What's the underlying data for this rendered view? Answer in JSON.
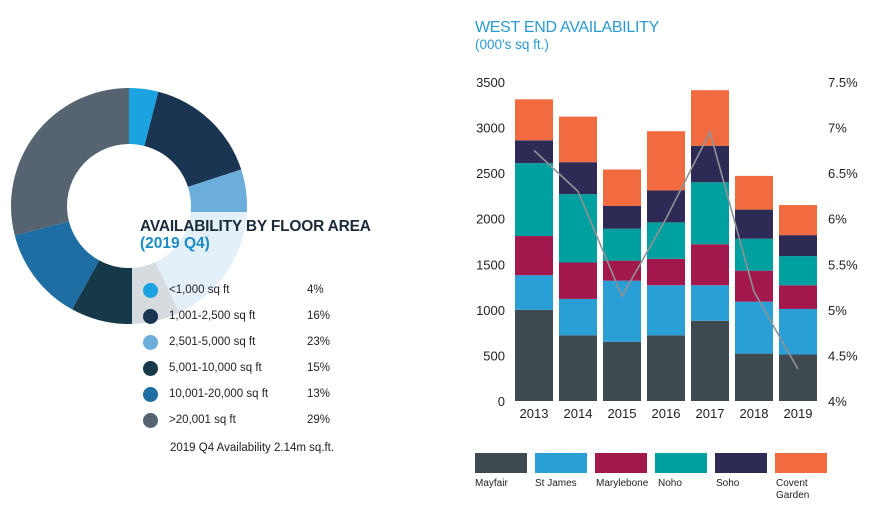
{
  "chart_data": [
    {
      "type": "pie",
      "title": "AVAILABILITY BY FLOOR AREA",
      "subtitle": "(2019 Q4)",
      "slices": [
        {
          "label": "<1,000 sq ft",
          "value": 4,
          "pct_label": "4%",
          "color": "#1aa3e0"
        },
        {
          "label": "1,001-2,500 sq ft",
          "value": 16,
          "pct_label": "16%",
          "color": "#1a3552"
        },
        {
          "label": "2,501-5,000 sq ft",
          "value": 23,
          "pct_label": "23%",
          "color": "#6baedc"
        },
        {
          "label": "5,001-10,000 sq ft",
          "value": 15,
          "pct_label": "15%",
          "color": "#16394a"
        },
        {
          "label": "10,001-20,000 sq ft",
          "value": 13,
          "pct_label": "13%",
          "color": "#1f6ea3"
        },
        {
          "label": ">20,001 sq ft",
          "value": 29,
          "pct_label": "29%",
          "color": "#556470"
        }
      ],
      "footnote": "2019 Q4 Availability 2.14m sq.ft."
    },
    {
      "type": "bar",
      "stacked": true,
      "title": "WEST END AVAILABILITY",
      "subtitle": "(000's sq ft.)",
      "categories": [
        "2013",
        "2014",
        "2015",
        "2016",
        "2017",
        "2018",
        "2019"
      ],
      "ylim": [
        0,
        3500
      ],
      "yticks": [
        "0",
        "500",
        "1000",
        "1500",
        "2000",
        "2500",
        "3000",
        "3500"
      ],
      "y2lim": [
        4,
        7.5
      ],
      "y2ticks": [
        "4%",
        "4.5%",
        "5%",
        "5.5%",
        "6%",
        "6.5%",
        "7%",
        "7.5%"
      ],
      "series": [
        {
          "name": "Mayfair",
          "color": "#3f4950",
          "values": [
            1000,
            720,
            650,
            720,
            880,
            520,
            510
          ]
        },
        {
          "name": "St James",
          "color": "#2a9fd6",
          "values": [
            380,
            400,
            670,
            550,
            390,
            570,
            500
          ]
        },
        {
          "name": "Marylebone",
          "color": "#a3184c",
          "values": [
            430,
            400,
            220,
            290,
            450,
            340,
            260
          ]
        },
        {
          "name": "Noho",
          "color": "#00a0a0",
          "values": [
            800,
            750,
            350,
            400,
            680,
            350,
            320
          ]
        },
        {
          "name": "Soho",
          "color": "#2d2b55",
          "values": [
            250,
            350,
            250,
            350,
            400,
            320,
            230
          ]
        },
        {
          "name": "Covent Garden",
          "color": "#f26a3f",
          "values": [
            450,
            500,
            400,
            650,
            610,
            370,
            330
          ]
        }
      ],
      "line": {
        "color": "#909296",
        "values": [
          6.75,
          6.3,
          5.15,
          6.0,
          6.95,
          5.2,
          4.35
        ]
      },
      "legend_position": "bottom"
    }
  ]
}
